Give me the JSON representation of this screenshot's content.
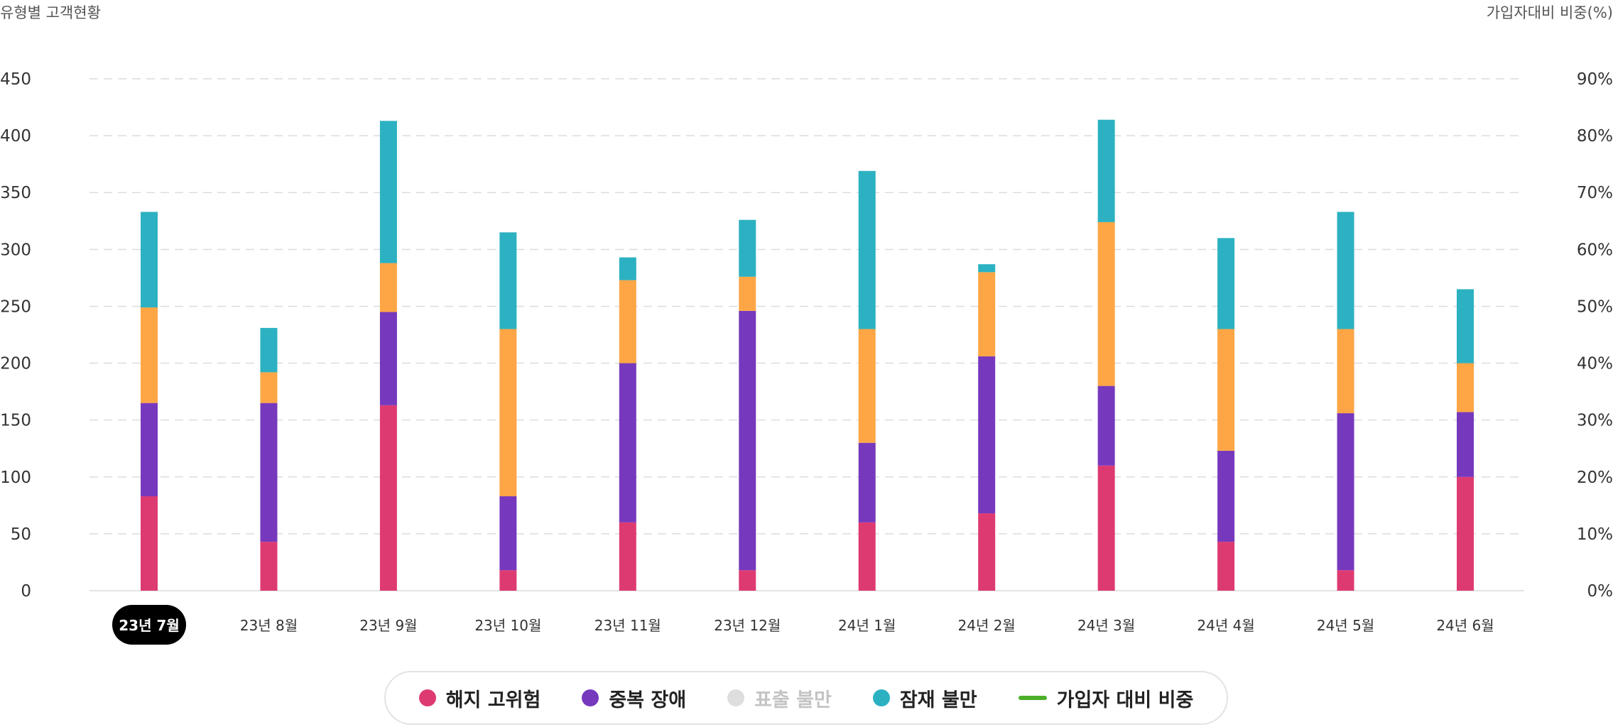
{
  "chart_data": {
    "type": "bar",
    "stacked": true,
    "left_axis_title": "유형별 고객현황",
    "right_axis_title": "가입자대비 비중(%)",
    "categories": [
      "23년 7월",
      "23년 8월",
      "23년 9월",
      "23년 10월",
      "23년 11월",
      "23년 12월",
      "24년 1월",
      "24년 2월",
      "24년 3월",
      "24년 4월",
      "24년 5월",
      "24년 6월"
    ],
    "selected_category": "23년 7월",
    "ylim": [
      0,
      450
    ],
    "yticks": [
      "0",
      "50",
      "100",
      "150",
      "200",
      "250",
      "300",
      "350",
      "400",
      "450"
    ],
    "y2lim": [
      0,
      90
    ],
    "y2ticks": [
      "0%",
      "10%",
      "20%",
      "30%",
      "40%",
      "50%",
      "60%",
      "70%",
      "80%",
      "90%"
    ],
    "grid": true,
    "legend_position": "bottom",
    "series": [
      {
        "name": "해지 고위험",
        "color": "#de3a72",
        "visible": true,
        "values": [
          83,
          43,
          163,
          18,
          60,
          18,
          60,
          68,
          110,
          43,
          18,
          100
        ]
      },
      {
        "name": "중복 장애",
        "color": "#7639bd",
        "visible": true,
        "values": [
          82,
          122,
          82,
          65,
          140,
          228,
          70,
          138,
          70,
          80,
          138,
          57
        ]
      },
      {
        "name": "표출 불만",
        "color": "#fea645",
        "visible": false,
        "values": [
          84,
          27,
          43,
          147,
          73,
          30,
          100,
          74,
          144,
          107,
          74,
          43
        ]
      },
      {
        "name": "잠재 불만",
        "color": "#2cb1c2",
        "visible": true,
        "values": [
          84,
          39,
          125,
          85,
          20,
          50,
          139,
          7,
          90,
          80,
          103,
          65
        ]
      }
    ],
    "line_series": {
      "name": "가입자 대비 비중",
      "color": "#4caf29"
    }
  }
}
